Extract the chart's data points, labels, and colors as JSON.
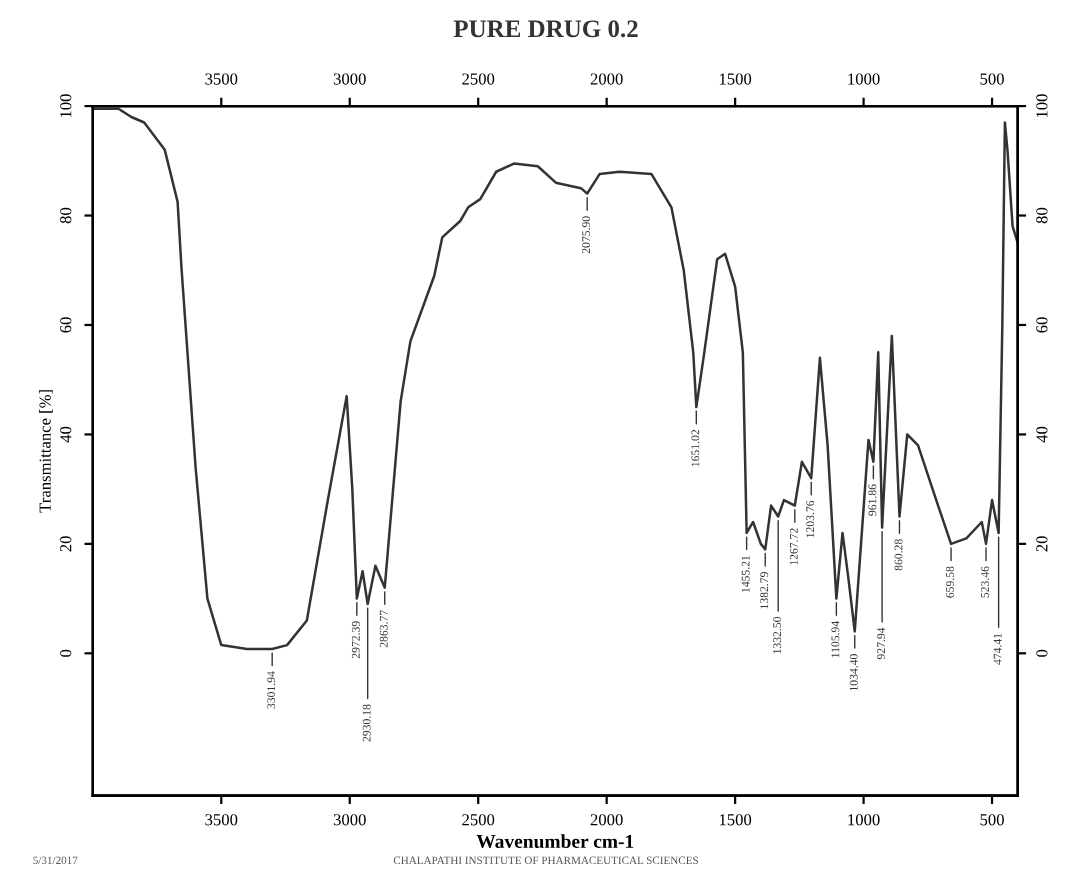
{
  "chart_data": {
    "type": "line",
    "title": "PURE DRUG 0.2",
    "xlabel": "Wavenumber cm-1",
    "ylabel": "Transmittance [%]",
    "x": [
      4000,
      3900,
      3850,
      3800,
      3720,
      3670,
      3655,
      3600,
      3554,
      3500,
      3400,
      3301.94,
      3244,
      3167,
      3089,
      3012,
      2990,
      2972.39,
      2950,
      2930.18,
      2900,
      2863.77,
      2802,
      2764,
      2671,
      2640,
      2570,
      2539,
      2492,
      2430,
      2361,
      2268,
      2198,
      2100,
      2075.9,
      2027,
      1950,
      1826,
      1748,
      1700,
      1663,
      1651.02,
      1620,
      1570,
      1539,
      1500,
      1470,
      1455.21,
      1430,
      1400,
      1382.79,
      1360,
      1332.5,
      1310,
      1267.72,
      1240,
      1203.76,
      1170,
      1140,
      1105.94,
      1082,
      1060,
      1034.4,
      981,
      961.86,
      943,
      927.94,
      890,
      860.28,
      830,
      788,
      710,
      659.58,
      600,
      540,
      523.46,
      500,
      474.41,
      460,
      450,
      440,
      420,
      400
    ],
    "series": [
      {
        "color": "#333333",
        "values": [
          99.5,
          99.5,
          98,
          97,
          92,
          82.5,
          70.5,
          34,
          10,
          1.5,
          0.8,
          0.8,
          1.5,
          6,
          27,
          47,
          30,
          10,
          15,
          9,
          16,
          12,
          46,
          57,
          69,
          76,
          79,
          81.5,
          83,
          88,
          89.5,
          89,
          86,
          85,
          84,
          87.6,
          88,
          87.6,
          81.5,
          70,
          55,
          45,
          55,
          72,
          73,
          67,
          55,
          22,
          24,
          20,
          19,
          27,
          25,
          28,
          27,
          35,
          32,
          54,
          38,
          10,
          22,
          14,
          4,
          39,
          35,
          55,
          23,
          58,
          25,
          40,
          38,
          27,
          20,
          21,
          24,
          20,
          28,
          22,
          60,
          97,
          92,
          78,
          75
        ]
      }
    ],
    "xlim": [
      4000,
      400
    ],
    "xticks": [
      3500,
      3000,
      2500,
      2000,
      1500,
      1000,
      500
    ],
    "x2lim": [
      4000,
      400
    ],
    "x2ticks": [
      3500,
      3000,
      2500,
      2000,
      1500,
      1000,
      500
    ],
    "ylim": [
      -26,
      100
    ],
    "yticks": [
      0,
      20,
      40,
      60,
      80,
      100
    ],
    "y2lim": [
      -26,
      100
    ],
    "y2ticks": [
      0,
      20,
      40,
      60,
      80,
      100
    ],
    "grid": false,
    "legend": false,
    "annotations": [
      {
        "text": "3301.94",
        "x": 3301.94,
        "y": 0.8
      },
      {
        "text": "2972.39",
        "x": 2972.39,
        "y": 10
      },
      {
        "text": "2930.18",
        "x": 2930.18,
        "y": 9
      },
      {
        "text": "2863.77",
        "x": 2863.77,
        "y": 12
      },
      {
        "text": "2075.90",
        "x": 2075.9,
        "y": 84
      },
      {
        "text": "1651.02",
        "x": 1651.02,
        "y": 45
      },
      {
        "text": "1455.21",
        "x": 1455.21,
        "y": 22
      },
      {
        "text": "1382.79",
        "x": 1382.79,
        "y": 19
      },
      {
        "text": "1332.50",
        "x": 1332.5,
        "y": 25
      },
      {
        "text": "1267.72",
        "x": 1267.72,
        "y": 27
      },
      {
        "text": "1203.76",
        "x": 1203.76,
        "y": 32
      },
      {
        "text": "1105.94",
        "x": 1105.94,
        "y": 10
      },
      {
        "text": "1034.40",
        "x": 1034.4,
        "y": 4
      },
      {
        "text": "961.86",
        "x": 961.86,
        "y": 35
      },
      {
        "text": "927.94",
        "x": 927.94,
        "y": 23
      },
      {
        "text": "860.28",
        "x": 860.28,
        "y": 25
      },
      {
        "text": "659.58",
        "x": 659.58,
        "y": 20
      },
      {
        "text": "523.46",
        "x": 523.46,
        "y": 20
      },
      {
        "text": "474.41",
        "x": 474.41,
        "y": 22
      },
      "5/31/2017",
      "CHALAPATHI INSTITUTE OF PHARMACEUTICAL SCIENCES"
    ]
  }
}
